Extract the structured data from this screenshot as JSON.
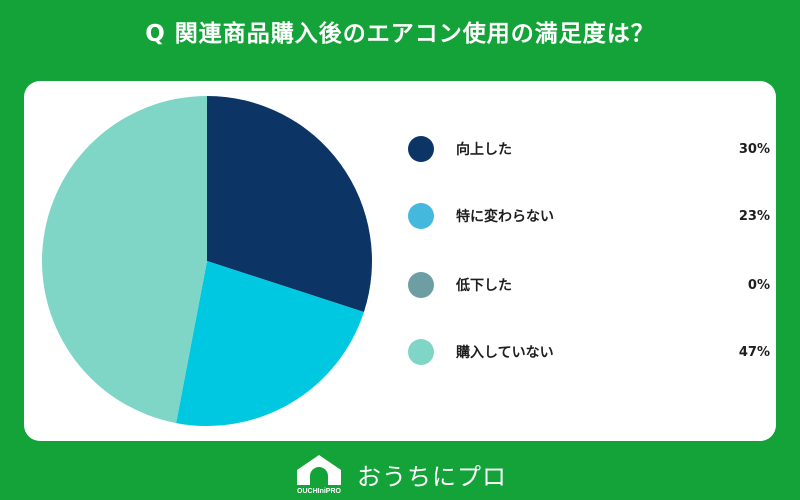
{
  "header": {
    "title": "Q 関連商品購入後のエアコン使用の満足度は？"
  },
  "chart_data": {
    "type": "pie",
    "title": "",
    "categories": [
      "向上した",
      "特に変わらない",
      "低下した",
      "購入していない"
    ],
    "values": [
      30,
      23,
      0,
      47
    ],
    "value_labels": [
      "30%",
      "23%",
      "0%",
      "47%"
    ],
    "colors": [
      "#0c3566",
      "#00c8e0",
      "#6c9ea4",
      "#7fd6c6"
    ],
    "legend_colors": [
      "#0c3566",
      "#45b8dd",
      "#6c9ea4",
      "#7fd6c6"
    ],
    "legend": "right",
    "start_angle": "top",
    "direction": "clockwise"
  },
  "footer": {
    "logo_text": "おうちにプロ",
    "logo_mark_text": "OUCHIniPRO"
  }
}
